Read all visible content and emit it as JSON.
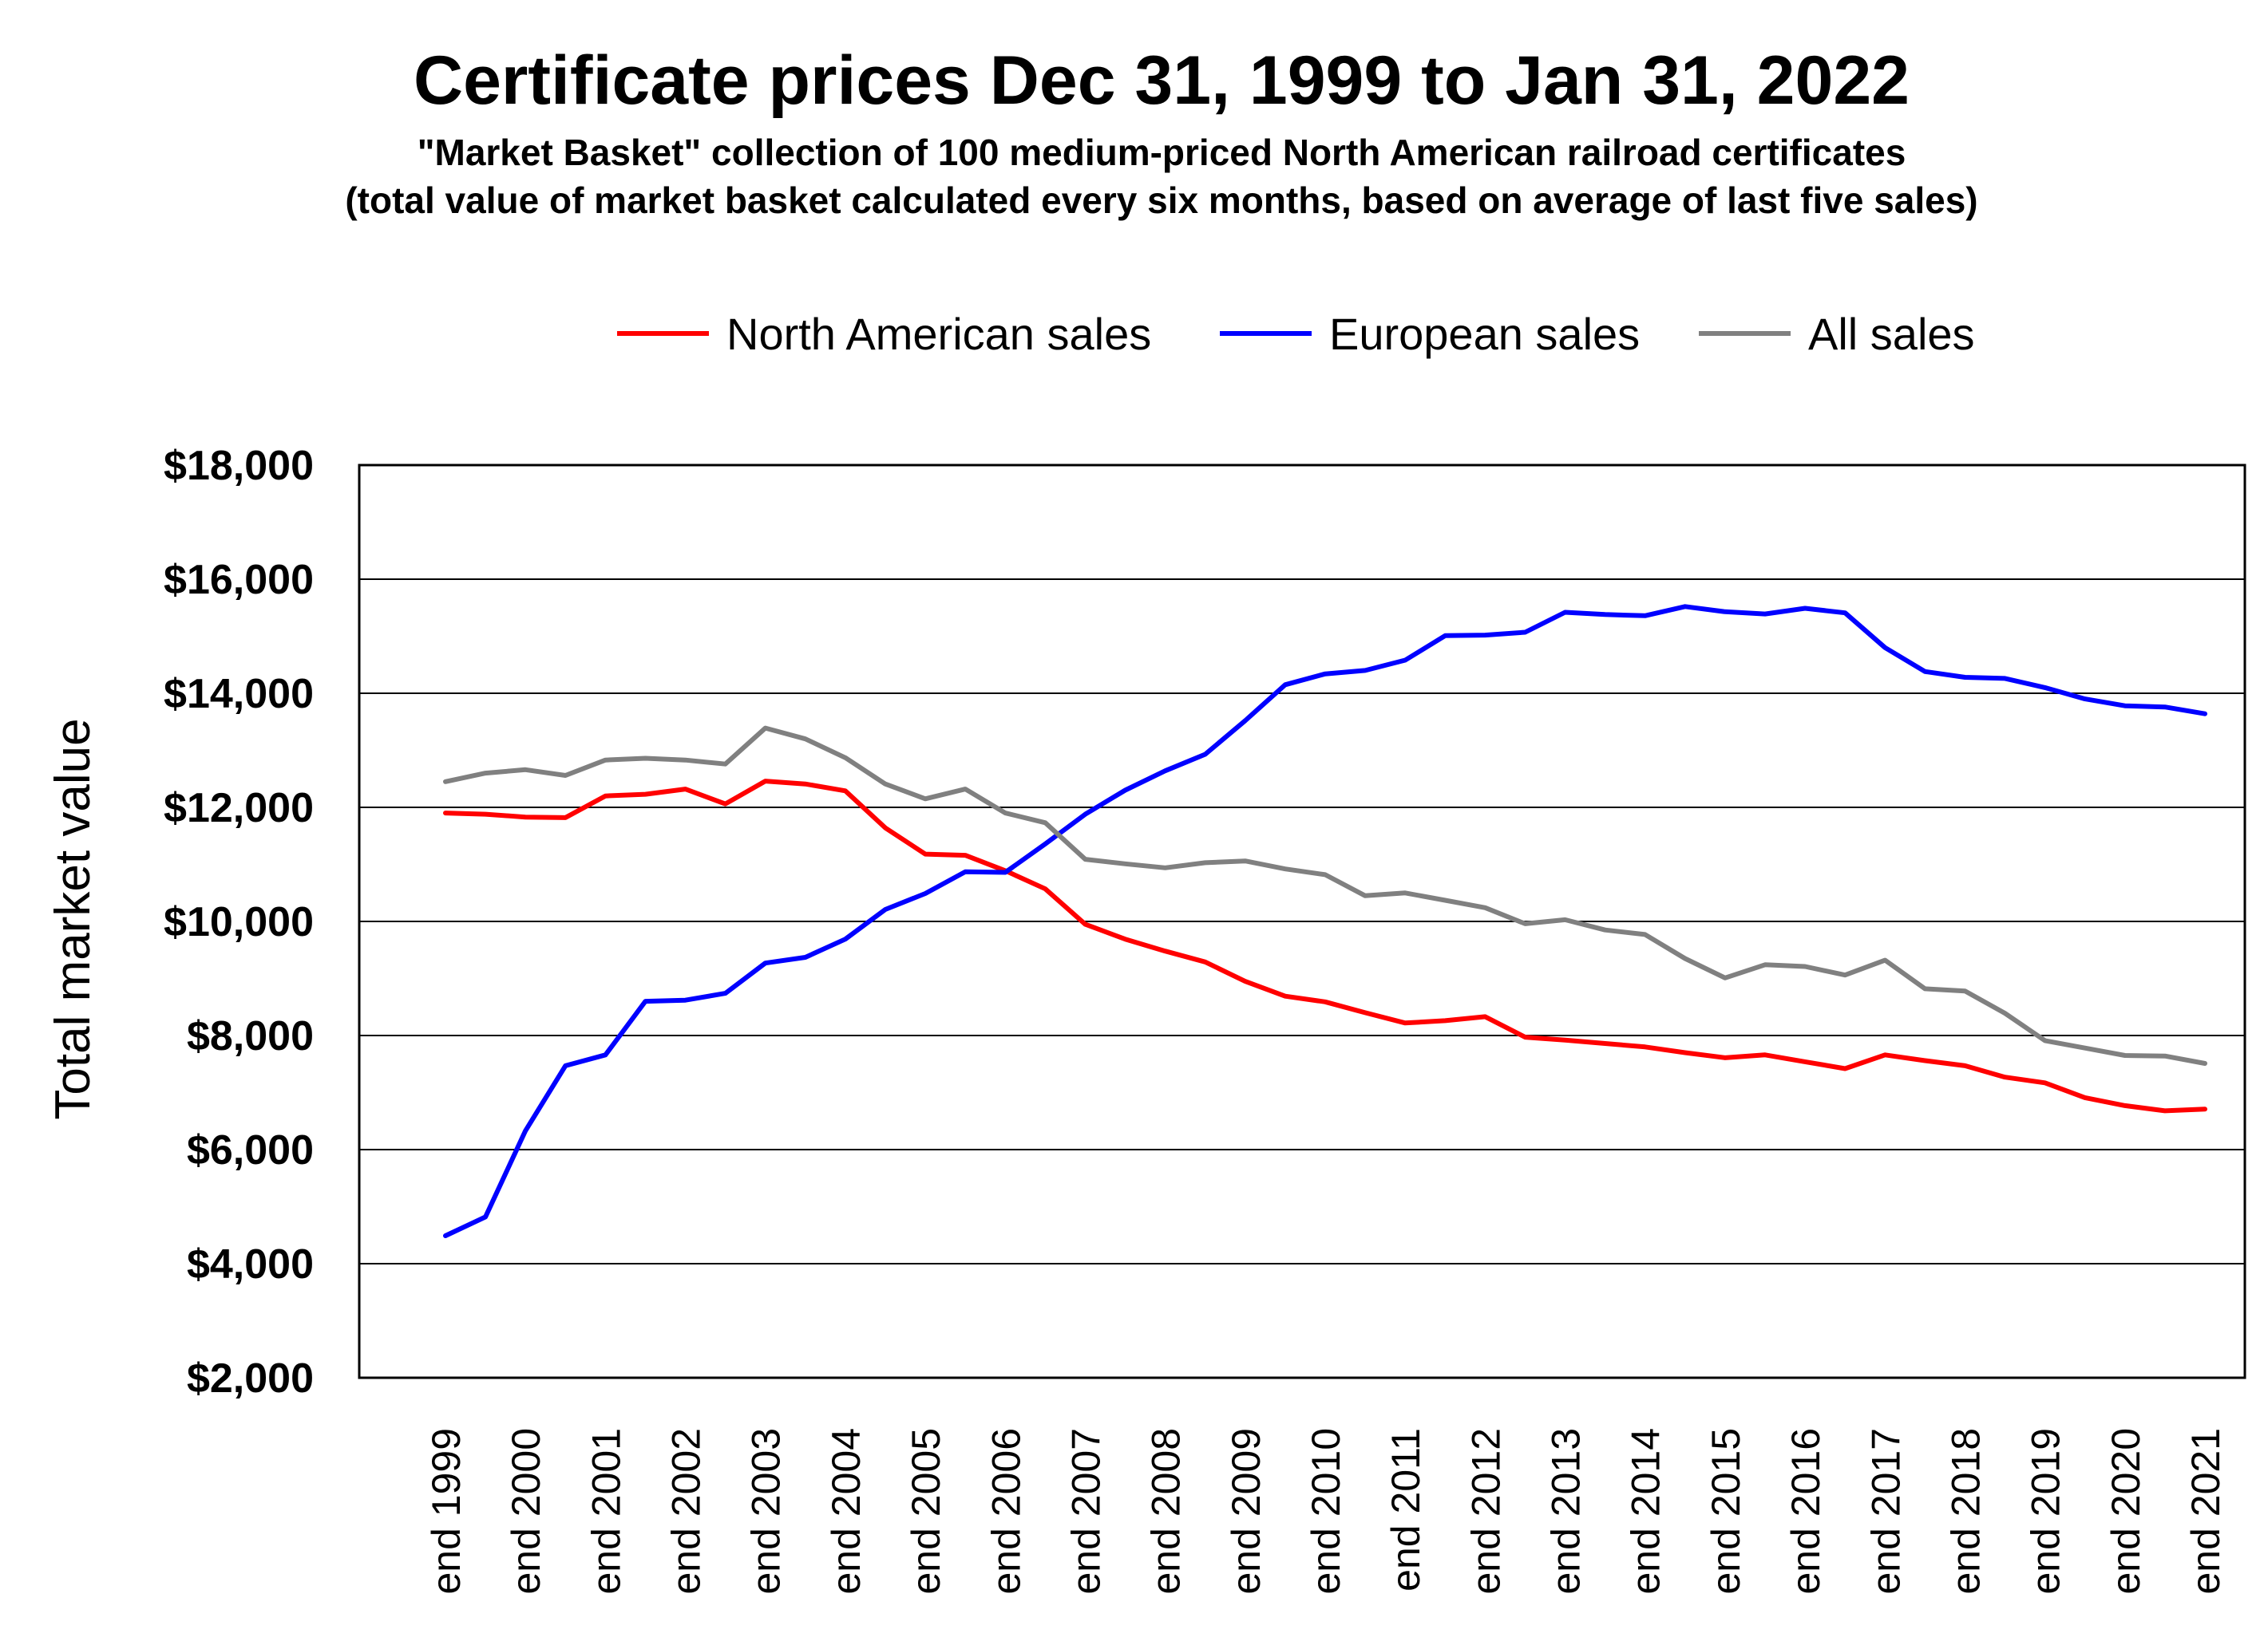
{
  "chart_data": {
    "type": "line",
    "title": "Certificate prices Dec 31, 1999 to Jan 31, 2022",
    "subtitle": [
      "\"Market Basket\" collection of 100 medium-priced North American railroad certificates",
      "(total value of market basket calculated every six months, based on average of last five sales)"
    ],
    "xlabel": "",
    "ylabel": "Total market value",
    "ylim": [
      2000,
      18000
    ],
    "yticks": [
      2000,
      4000,
      6000,
      8000,
      10000,
      12000,
      14000,
      16000,
      18000
    ],
    "ytick_labels": [
      "$2,000",
      "$4,000",
      "$6,000",
      "$8,000",
      "$10,000",
      "$12,000",
      "$14,000",
      "$16,000",
      "$18,000"
    ],
    "grid": "horizontal",
    "legend_position": "top-center",
    "x_index_range": [
      0,
      44
    ],
    "xtick_positions": [
      0,
      2,
      4,
      6,
      8,
      10,
      12,
      14,
      16,
      18,
      20,
      22,
      24,
      26,
      28,
      30,
      32,
      34,
      36,
      38,
      40,
      42,
      44
    ],
    "xtick_labels": [
      "end 1999",
      "end 2000",
      "end 2001",
      "end 2002",
      "end 2003",
      "end 2004",
      "end 2005",
      "end 2006",
      "end 2007",
      "end 2008",
      "end 2009",
      "end 2010",
      "end 2011",
      "end 2012",
      "end 2013",
      "end 2014",
      "end 2015",
      "end 2016",
      "end 2017",
      "end 2018",
      "end 2019",
      "end 2020",
      "end 2021"
    ],
    "series": [
      {
        "name": "North American sales",
        "color": "#ff0000",
        "values": [
          11900,
          11880,
          11830,
          11820,
          12200,
          12230,
          12320,
          12060,
          12460,
          12410,
          12290,
          11640,
          11180,
          11160,
          10890,
          10570,
          9950,
          9690,
          9480,
          9290,
          8950,
          8690,
          8590,
          8400,
          8220,
          8260,
          8330,
          7970,
          7920,
          7860,
          7800,
          7700,
          7610,
          7660,
          7540,
          7420,
          7660,
          7560,
          7470,
          7270,
          7170,
          6910,
          6770,
          6680,
          6710
        ]
      },
      {
        "name": "European sales",
        "color": "#0000ff",
        "values": [
          4490,
          4820,
          6330,
          7470,
          7660,
          8600,
          8620,
          8740,
          9270,
          9370,
          9690,
          10210,
          10490,
          10870,
          10860,
          11360,
          11880,
          12300,
          12640,
          12930,
          13520,
          14150,
          14340,
          14400,
          14580,
          15010,
          15020,
          15070,
          15420,
          15380,
          15360,
          15520,
          15430,
          15390,
          15490,
          15410,
          14800,
          14380,
          14280,
          14260,
          14100,
          13900,
          13780,
          13760,
          13640
        ]
      },
      {
        "name": "All sales",
        "color": "#808080",
        "values": [
          12450,
          12600,
          12660,
          12560,
          12830,
          12860,
          12830,
          12760,
          13390,
          13200,
          12870,
          12410,
          12150,
          12320,
          11900,
          11730,
          11090,
          11010,
          10940,
          11030,
          11060,
          10920,
          10820,
          10450,
          10500,
          10370,
          10240,
          9960,
          10030,
          9850,
          9770,
          9350,
          9010,
          9240,
          9210,
          9060,
          9320,
          8820,
          8780,
          8390,
          7910,
          7780,
          7650,
          7640,
          7510
        ]
      }
    ]
  }
}
